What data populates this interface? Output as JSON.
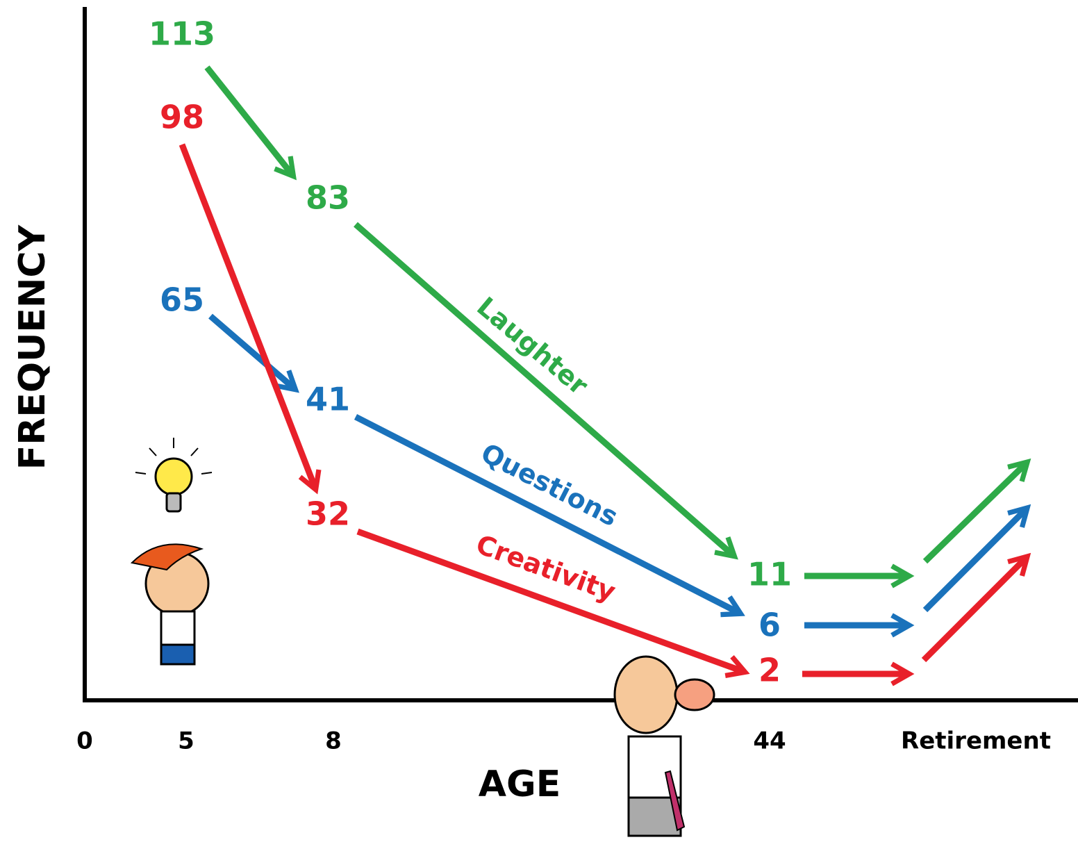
{
  "y_axis_label": "FREQUENCY",
  "x_axis_label": "AGE",
  "x_ticks": [
    "0",
    "5",
    "8",
    "44",
    "Retirement"
  ],
  "series": [
    {
      "name": "Laughter",
      "color": "#2eaa48",
      "values": [
        113,
        83,
        11
      ]
    },
    {
      "name": "Questions",
      "color": "#1a72bb",
      "values": [
        65,
        41,
        6
      ]
    },
    {
      "name": "Creativity",
      "color": "#e8202a",
      "values": [
        98,
        32,
        2
      ]
    }
  ]
}
